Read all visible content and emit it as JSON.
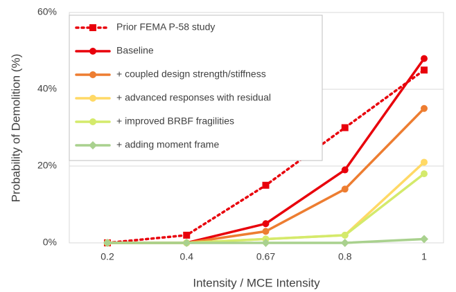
{
  "chart_data": {
    "type": "line",
    "x_label": "Intensity / MCE Intensity",
    "y_label": "Probability of Demolition (%)",
    "categories": [
      "0.2",
      "0.4",
      "0.67",
      "0.8",
      "1"
    ],
    "ylim": [
      0,
      60
    ],
    "yticks": [
      {
        "value": 0,
        "label": "0%"
      },
      {
        "value": 20,
        "label": "20%"
      },
      {
        "value": 40,
        "label": "40%"
      },
      {
        "value": 60,
        "label": "60%"
      }
    ],
    "legend": "upper left",
    "series": [
      {
        "name": "Prior FEMA P-58 study",
        "color": "#e8000b",
        "marker": "square",
        "dash": "dotted",
        "values": [
          0,
          2,
          15,
          30,
          45
        ]
      },
      {
        "name": "Baseline",
        "color": "#e8000b",
        "marker": "circle",
        "dash": "solid",
        "values": [
          0,
          0,
          5,
          19,
          48
        ]
      },
      {
        "name": "+ coupled design strength/stiffness",
        "color": "#ed7d31",
        "marker": "circle",
        "dash": "solid",
        "values": [
          0,
          0,
          3,
          14,
          35
        ]
      },
      {
        "name": "+ advanced responses with residual",
        "color": "#ffd966",
        "marker": "circle",
        "dash": "solid",
        "values": [
          0,
          0,
          1,
          2,
          21
        ]
      },
      {
        "name": "+ improved BRBF fragilities",
        "color": "#d4ea6b",
        "marker": "circle",
        "dash": "solid",
        "values": [
          0,
          0,
          1,
          2,
          18
        ]
      },
      {
        "name": "+ adding moment frame",
        "color": "#a9d18e",
        "marker": "diamond",
        "dash": "solid",
        "values": [
          0,
          0,
          0,
          0,
          1
        ]
      }
    ]
  }
}
